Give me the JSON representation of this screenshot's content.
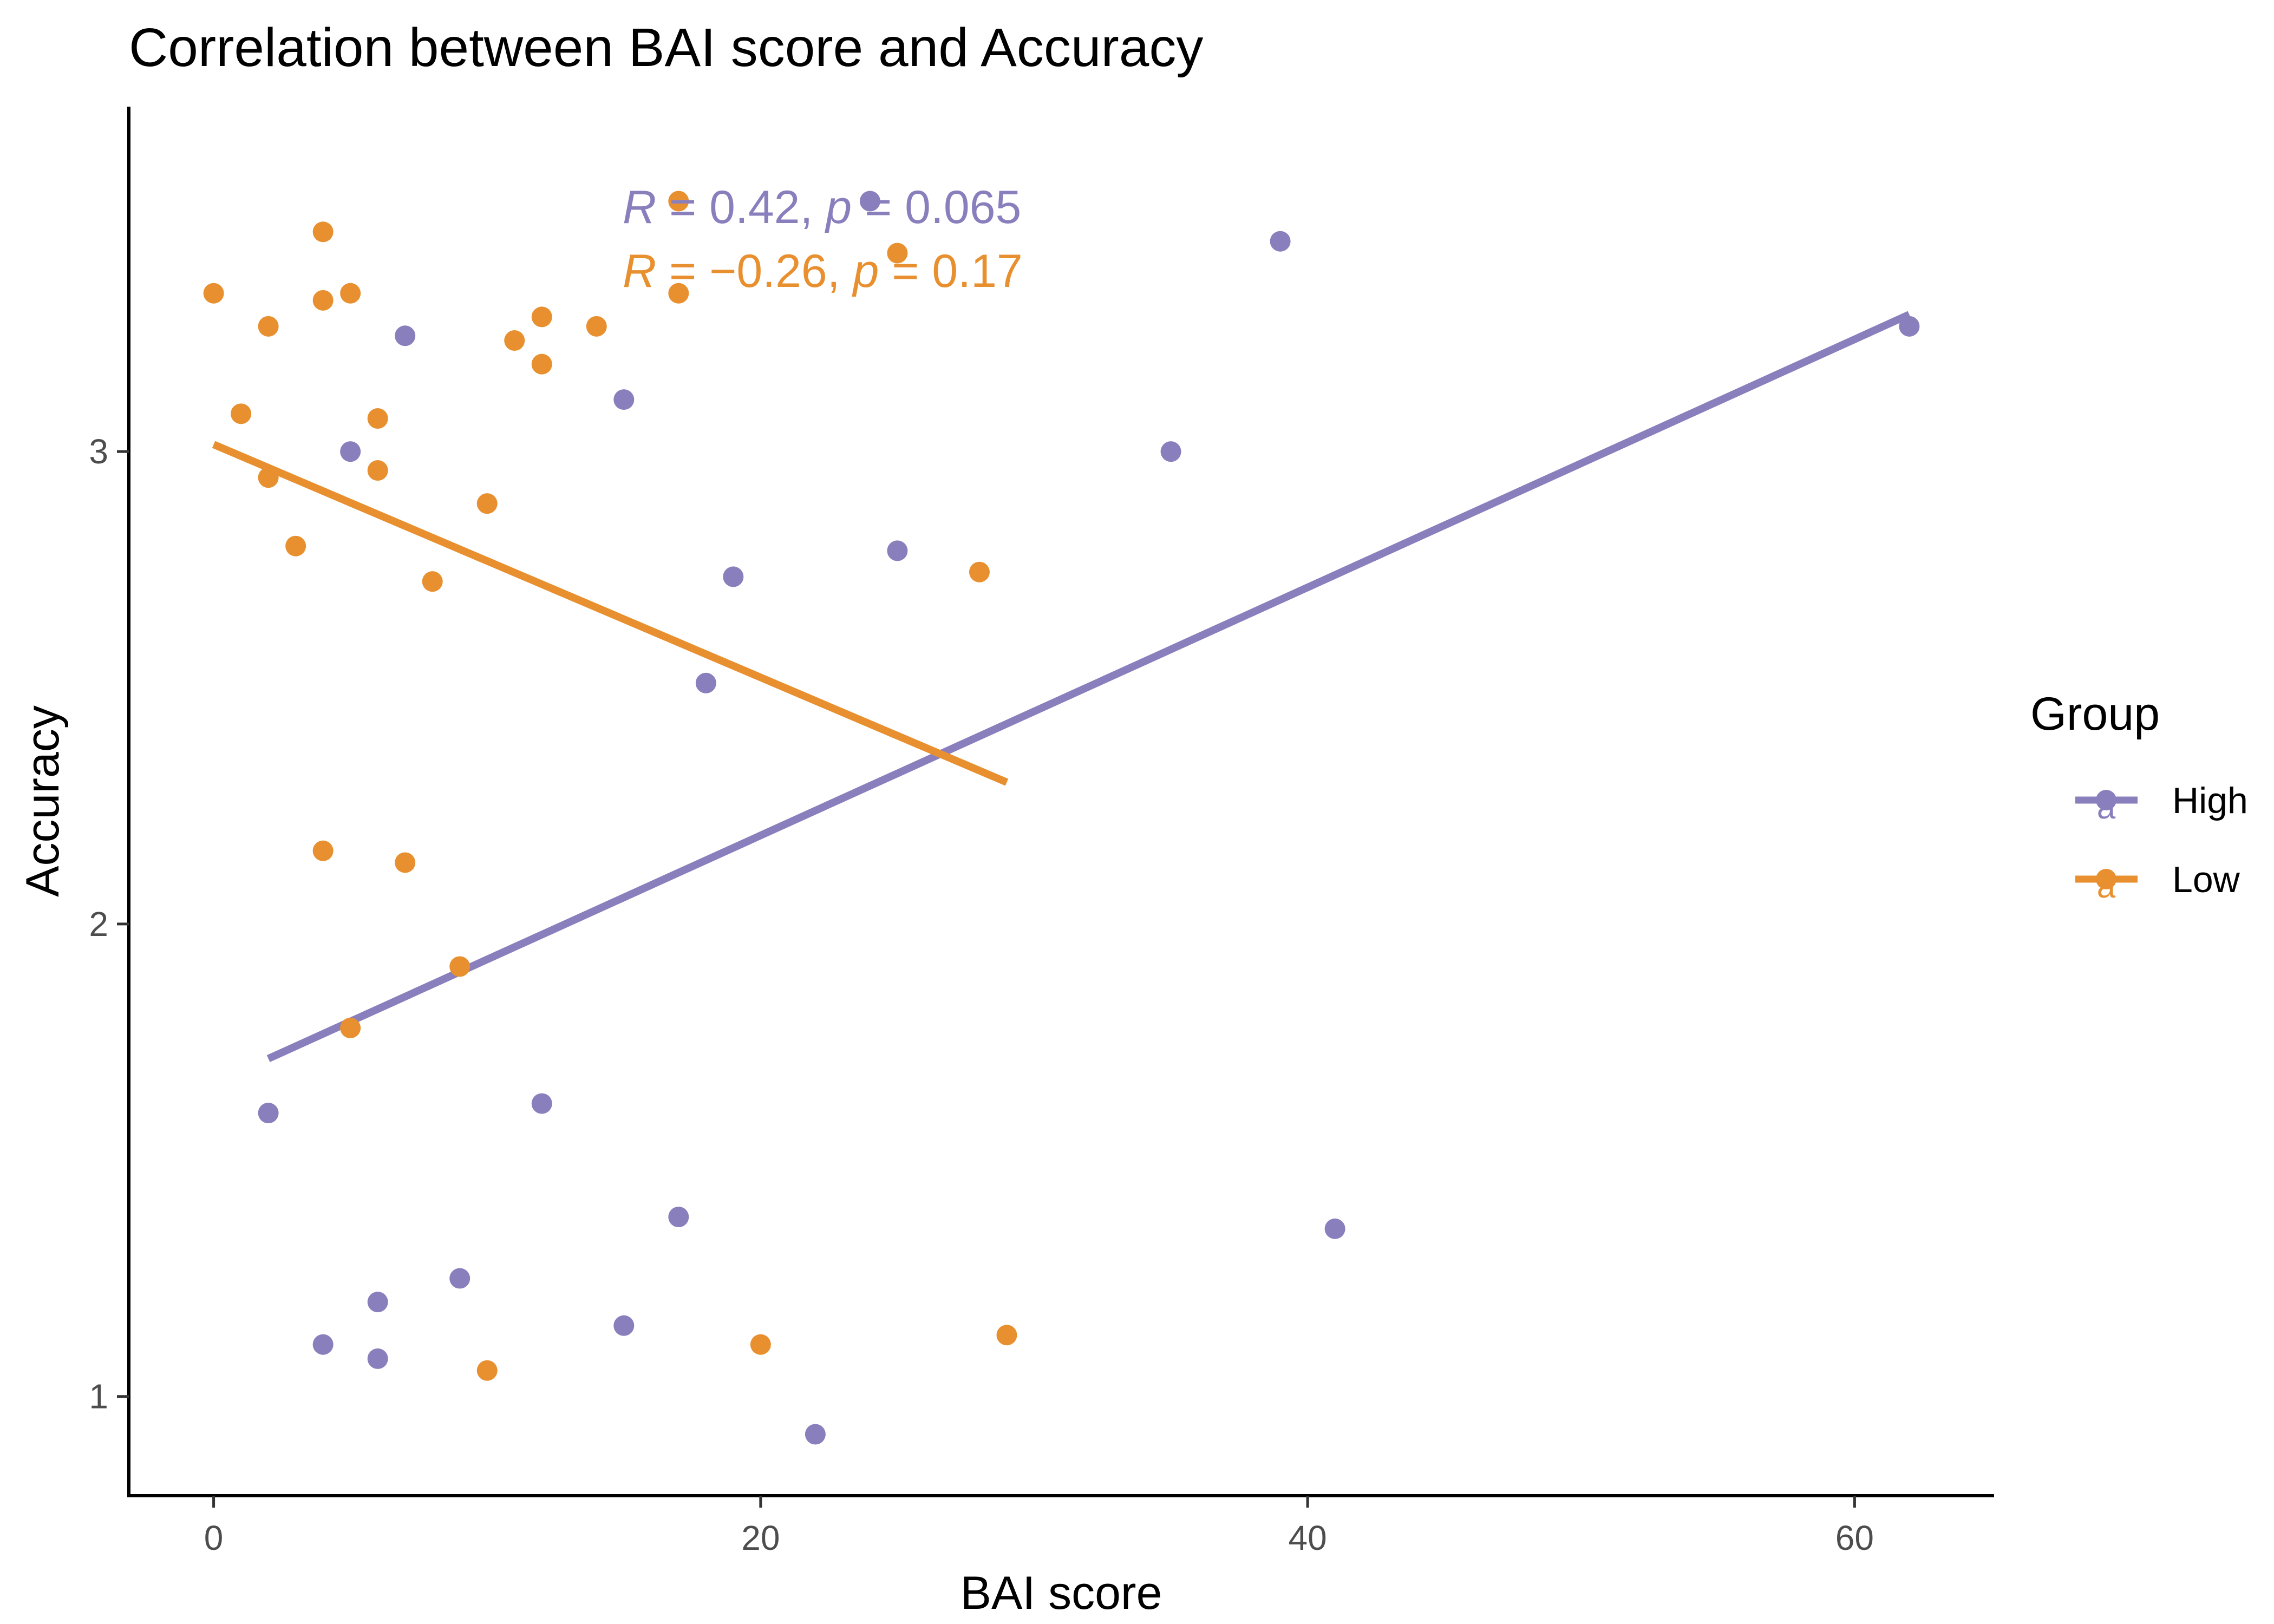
{
  "chart_data": {
    "type": "scatter",
    "title": "Correlation between BAI score and Accuracy",
    "xlabel": "BAI score",
    "ylabel": "Accuracy",
    "xlim": [
      -3.1,
      65.1
    ],
    "ylim": [
      0.79,
      3.73
    ],
    "xticks": [
      0,
      20,
      40,
      60
    ],
    "yticks": [
      1,
      2,
      3
    ],
    "grid": false,
    "legend": {
      "title": "Group",
      "placement": "right",
      "glyph": "a"
    },
    "series": [
      {
        "name": "High",
        "color": "#8a7fbd",
        "points": [
          [
            2,
            1.6
          ],
          [
            4,
            1.11
          ],
          [
            5,
            3.0
          ],
          [
            6,
            1.2
          ],
          [
            6,
            1.08
          ],
          [
            7,
            3.245
          ],
          [
            9,
            1.25
          ],
          [
            12,
            1.62
          ],
          [
            15,
            3.11
          ],
          [
            15,
            1.15
          ],
          [
            17,
            1.38
          ],
          [
            18,
            2.51
          ],
          [
            19,
            2.735
          ],
          [
            22,
            0.92
          ],
          [
            24,
            3.53
          ],
          [
            25,
            2.79
          ],
          [
            35,
            3.0
          ],
          [
            39,
            3.445
          ],
          [
            41,
            1.355
          ],
          [
            62,
            3.265
          ]
        ],
        "fit": {
          "x": [
            2,
            62
          ],
          "y": [
            1.715,
            3.29
          ]
        },
        "stat": {
          "R": "0.42",
          "p": "0.065"
        }
      },
      {
        "name": "Low",
        "color": "#e8902f",
        "points": [
          [
            0,
            3.335
          ],
          [
            1,
            3.08
          ],
          [
            2,
            3.265
          ],
          [
            2,
            2.945
          ],
          [
            3,
            2.8
          ],
          [
            4,
            3.465
          ],
          [
            4,
            3.32
          ],
          [
            4,
            2.155
          ],
          [
            5,
            3.335
          ],
          [
            5,
            1.78
          ],
          [
            6,
            3.07
          ],
          [
            6,
            2.96
          ],
          [
            7,
            2.13
          ],
          [
            8,
            2.725
          ],
          [
            9,
            1.91
          ],
          [
            10,
            2.89
          ],
          [
            10,
            1.055
          ],
          [
            11,
            3.235
          ],
          [
            12,
            3.285
          ],
          [
            12,
            3.185
          ],
          [
            14,
            3.265
          ],
          [
            17,
            3.53
          ],
          [
            17,
            3.335
          ],
          [
            20,
            1.11
          ],
          [
            25,
            3.42
          ],
          [
            28,
            2.745
          ],
          [
            29,
            1.13
          ]
        ],
        "fit": {
          "x": [
            0,
            29
          ],
          "y": [
            3.015,
            2.3
          ]
        },
        "stat": {
          "R": "−0.26",
          "p": "0.17"
        }
      }
    ]
  }
}
